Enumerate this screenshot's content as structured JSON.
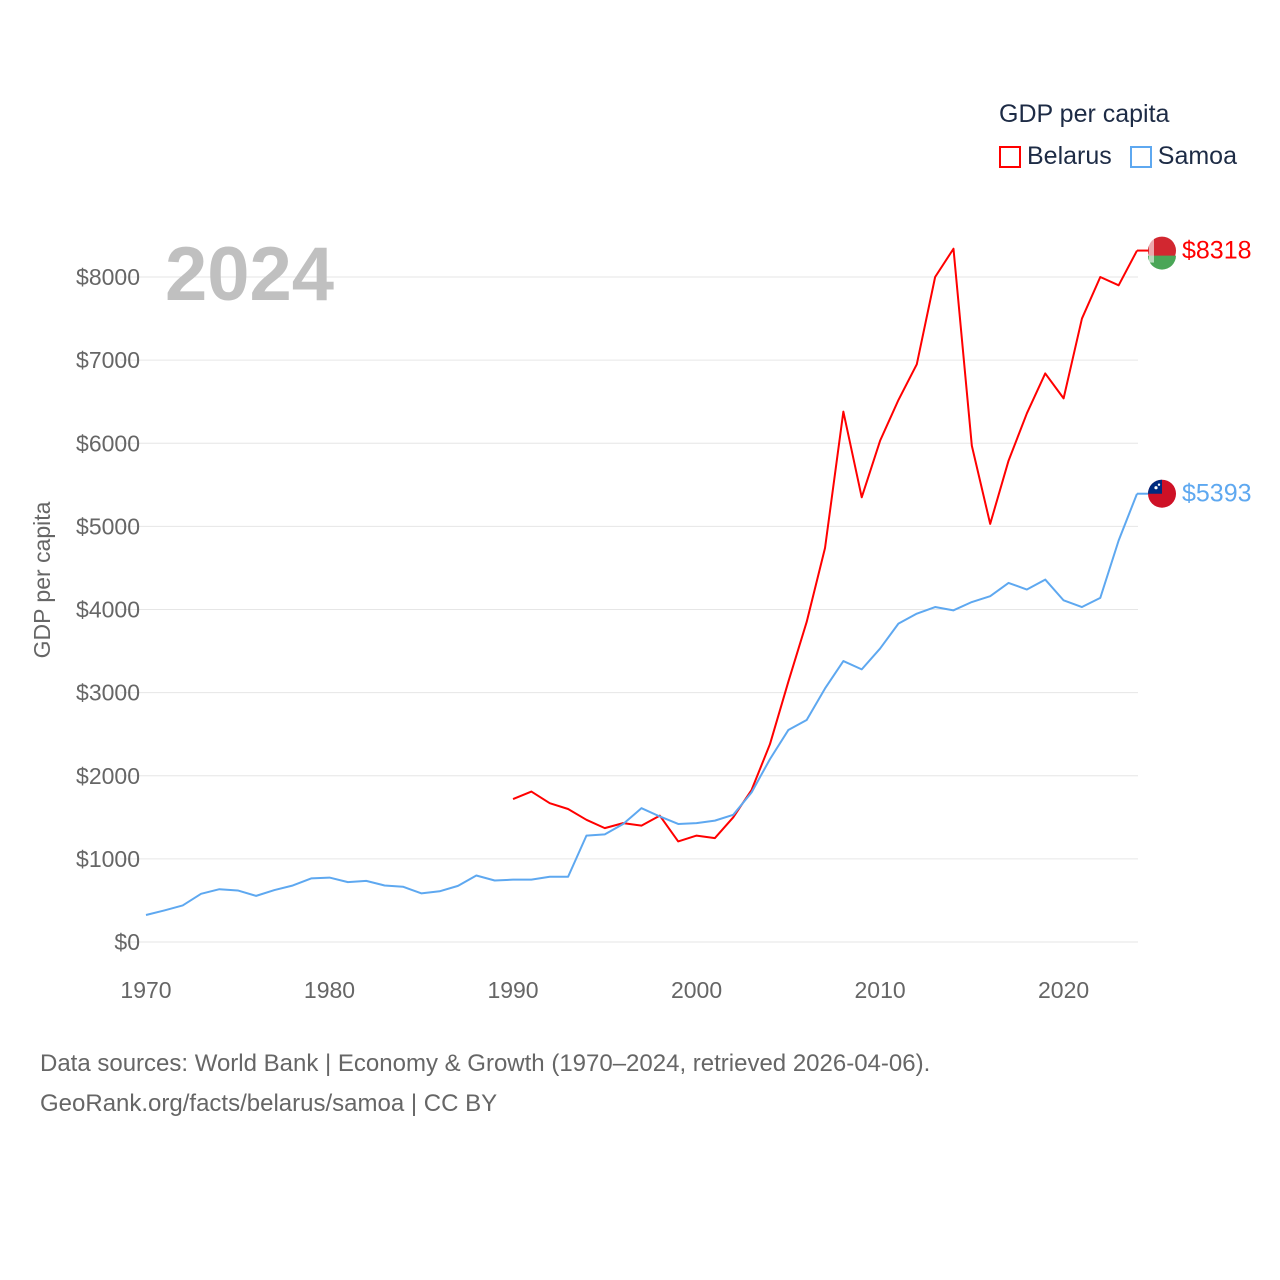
{
  "chart_data": {
    "type": "line",
    "title": "GDP per capita",
    "big_year_label": "2024",
    "xlabel": "",
    "ylabel": "GDP per capita",
    "xlim": [
      1970,
      2024
    ],
    "ylim": [
      0,
      8000
    ],
    "x_ticks": [
      1970,
      1980,
      1990,
      2000,
      2010,
      2020
    ],
    "y_ticks": [
      0,
      1000,
      2000,
      3000,
      4000,
      5000,
      6000,
      7000,
      8000
    ],
    "y_tick_labels": [
      "$0",
      "$1000",
      "$2000",
      "$3000",
      "$4000",
      "$5000",
      "$6000",
      "$7000",
      "$8000"
    ],
    "grid": true,
    "legend_position": "top-right",
    "series": [
      {
        "name": "Belarus",
        "color": "#ff0000",
        "end_label": "$8318",
        "x": [
          1990,
          1991,
          1992,
          1993,
          1994,
          1995,
          1996,
          1997,
          1998,
          1999,
          2000,
          2001,
          2002,
          2003,
          2004,
          2005,
          2006,
          2007,
          2008,
          2009,
          2010,
          2011,
          2012,
          2013,
          2014,
          2015,
          2016,
          2017,
          2018,
          2019,
          2020,
          2021,
          2022,
          2023,
          2024
        ],
        "values": [
          1720,
          1810,
          1670,
          1600,
          1470,
          1370,
          1430,
          1400,
          1520,
          1210,
          1280,
          1250,
          1500,
          1830,
          2380,
          3130,
          3850,
          4740,
          6380,
          5350,
          6030,
          6520,
          6950,
          8000,
          8340,
          5970,
          5030,
          5790,
          6360,
          6840,
          6540,
          7500,
          8000,
          7900,
          8318
        ]
      },
      {
        "name": "Samoa",
        "color": "#5ea8f0",
        "end_label": "$5393",
        "x": [
          1970,
          1971,
          1972,
          1973,
          1974,
          1975,
          1976,
          1977,
          1978,
          1979,
          1980,
          1981,
          1982,
          1983,
          1984,
          1985,
          1986,
          1987,
          1988,
          1989,
          1990,
          1991,
          1992,
          1993,
          1994,
          1995,
          1996,
          1997,
          1998,
          1999,
          2000,
          2001,
          2002,
          2003,
          2004,
          2005,
          2006,
          2007,
          2008,
          2009,
          2010,
          2011,
          2012,
          2013,
          2014,
          2015,
          2016,
          2017,
          2018,
          2019,
          2020,
          2021,
          2022,
          2023,
          2024
        ],
        "values": [
          325,
          380,
          440,
          580,
          635,
          620,
          555,
          625,
          680,
          765,
          775,
          720,
          735,
          680,
          665,
          585,
          610,
          675,
          800,
          740,
          750,
          750,
          785,
          785,
          1280,
          1295,
          1420,
          1610,
          1510,
          1420,
          1430,
          1460,
          1530,
          1800,
          2200,
          2550,
          2670,
          3050,
          3380,
          3280,
          3530,
          3830,
          3950,
          4030,
          3990,
          4090,
          4160,
          4320,
          4240,
          4360,
          4110,
          4030,
          4140,
          4830,
          5393
        ]
      }
    ]
  },
  "legend": {
    "title": "GDP per capita",
    "items": [
      "Belarus",
      "Samoa"
    ]
  },
  "footer": {
    "line1": "Data sources: World Bank | Economy & Growth (1970–2024, retrieved 2026-04-06).",
    "line2": "GeoRank.org/facts/belarus/samoa | CC BY"
  }
}
